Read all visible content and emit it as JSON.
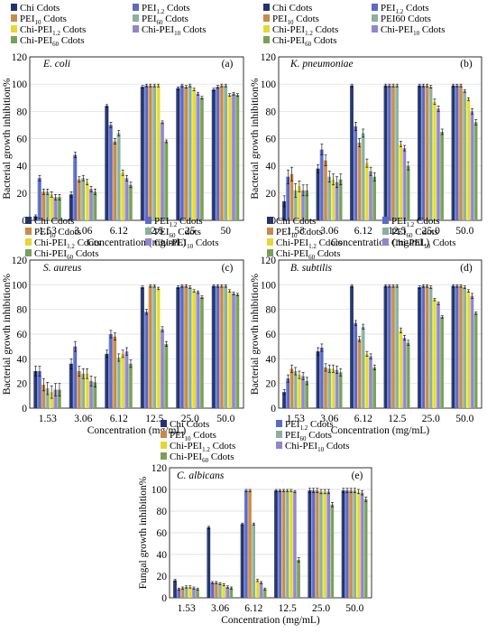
{
  "figure": {
    "colors": {
      "Chi Cdots": "#24336b",
      "PEI1.2 Cdots": "#5a6bc4",
      "PEI10 Cdots": "#c88a4a",
      "PEI60 Cdots": "#8ab0a0",
      "Chi-PEI1.2 Cdots": "#e6d832",
      "Chi-PEI10 Cdots": "#8f86d0",
      "Chi-PEI60 Cdots": "#78a05a"
    }
  },
  "chart_data": [
    {
      "type": "bar",
      "panel_label": "(a)",
      "organism": "E. coli",
      "ylabel": "Bacterial growth inhibition%",
      "xlabel": "Concentration (mg/mL)",
      "categories": [
        "1.53",
        "3.06",
        "6.12",
        "12.5",
        "25",
        "50"
      ],
      "ylim": [
        0,
        120
      ],
      "yticks": [
        "0",
        "20",
        "40",
        "60",
        "80",
        "100",
        "120"
      ],
      "legend": [
        {
          "sym": "Chi Cdots",
          "label": "Chi Cdots"
        },
        {
          "sym": "PEI1.2 Cdots",
          "label": "PEI",
          "sub": "1.2",
          "tail": " Cdots"
        },
        {
          "sym": "PEI10 Cdots",
          "label": "PEI",
          "sub": "10",
          "tail": " Cdots"
        },
        {
          "sym": "PEI60 Cdots",
          "label": "PEI",
          "sub": "60",
          "tail": " Cdots"
        },
        {
          "sym": "Chi-PEI1.2 Cdots",
          "label": "Chi-PEI",
          "sub": "1.2",
          "tail": " Cdots"
        },
        {
          "sym": "Chi-PEI10 Cdots",
          "label": "Chi-PEI",
          "sub": "10",
          "tail": " Cdots"
        },
        {
          "sym": "Chi-PEI60 Cdots",
          "label": "Chi-PEI",
          "sub": "60",
          "tail": " Cdots"
        }
      ],
      "series": [
        {
          "sym": "Chi Cdots",
          "values": [
            3,
            19,
            84,
            98,
            97,
            96
          ],
          "err": [
            1,
            2,
            1,
            1,
            1,
            1
          ]
        },
        {
          "sym": "PEI1.2 Cdots",
          "values": [
            31,
            48,
            70,
            99,
            99,
            98
          ],
          "err": [
            2,
            2,
            2,
            1,
            1,
            1
          ]
        },
        {
          "sym": "PEI10 Cdots",
          "values": [
            21,
            30,
            58,
            99,
            98,
            99
          ],
          "err": [
            2,
            2,
            2,
            1,
            1,
            1
          ]
        },
        {
          "sym": "PEI60 Cdots",
          "values": [
            21,
            31,
            64,
            99,
            99,
            99
          ],
          "err": [
            2,
            2,
            2,
            1,
            1,
            1
          ]
        },
        {
          "sym": "Chi-PEI1.2 Cdots",
          "values": [
            19,
            28,
            35,
            99,
            96,
            92
          ],
          "err": [
            2,
            2,
            2,
            1,
            1,
            1
          ]
        },
        {
          "sym": "Chi-PEI10 Cdots",
          "values": [
            17,
            23,
            31,
            72,
            93,
            93
          ],
          "err": [
            2,
            2,
            2,
            1,
            1,
            1
          ]
        },
        {
          "sym": "Chi-PEI60 Cdots",
          "values": [
            17,
            21,
            26,
            58,
            90,
            92
          ],
          "err": [
            2,
            2,
            2,
            1,
            1,
            1
          ]
        }
      ]
    },
    {
      "type": "bar",
      "panel_label": "(b)",
      "organism": "K. pneumoniae",
      "ylabel": "Bacterial growth inhibition%",
      "xlabel": "Concentration (mg/mL)",
      "categories": [
        "1.53",
        "3.06",
        "6.12",
        "12.5",
        "25.0",
        "50.0"
      ],
      "ylim": [
        0,
        120
      ],
      "yticks": [
        "0",
        "20",
        "40",
        "60",
        "80",
        "100",
        "120"
      ],
      "legend": [
        {
          "sym": "Chi Cdots",
          "label": "Chi Cdots"
        },
        {
          "sym": "PEI1.2 Cdots",
          "label": "PEI",
          "sub": "1.2",
          "tail": " Cdots"
        },
        {
          "sym": "PEI10 Cdots",
          "label": "PEI",
          "sub": "10",
          "tail": " Cdots"
        },
        {
          "sym": "PEI60 Cdots",
          "label": "PEI60 Cdots"
        },
        {
          "sym": "Chi-PEI1.2 Cdots",
          "label": "Chi-PEI",
          "sub": "1.2",
          "tail": " Cdots"
        },
        {
          "sym": "Chi-PEI10 Cdots",
          "label": "Chi-PEI",
          "sub": "10",
          "tail": " Cdots"
        },
        {
          "sym": "Chi-PEI60 Cdots",
          "label": "Chi-PEI",
          "sub": "60",
          "tail": " Cdots"
        }
      ],
      "series": [
        {
          "sym": "Chi Cdots",
          "values": [
            14,
            38,
            99,
            99,
            99,
            99
          ],
          "err": [
            4,
            3,
            1,
            1,
            1,
            1
          ]
        },
        {
          "sym": "PEI1.2 Cdots",
          "values": [
            32,
            52,
            69,
            99,
            99,
            99
          ],
          "err": [
            5,
            4,
            3,
            1,
            1,
            1
          ]
        },
        {
          "sym": "PEI10 Cdots",
          "values": [
            34,
            44,
            57,
            99,
            99,
            99
          ],
          "err": [
            5,
            4,
            3,
            1,
            1,
            1
          ]
        },
        {
          "sym": "PEI60 Cdots",
          "values": [
            22,
            32,
            64,
            99,
            98,
            95
          ],
          "err": [
            5,
            4,
            3,
            1,
            1,
            1
          ]
        },
        {
          "sym": "Chi-PEI1.2 Cdots",
          "values": [
            25,
            30,
            42,
            56,
            87,
            89
          ],
          "err": [
            4,
            4,
            3,
            2,
            2,
            1
          ]
        },
        {
          "sym": "Chi-PEI10 Cdots",
          "values": [
            22,
            28,
            36,
            53,
            82,
            80
          ],
          "err": [
            4,
            4,
            3,
            2,
            2,
            2
          ]
        },
        {
          "sym": "Chi-PEI60 Cdots",
          "values": [
            22,
            30,
            32,
            40,
            65,
            72
          ],
          "err": [
            4,
            4,
            3,
            3,
            2,
            2
          ]
        }
      ]
    },
    {
      "type": "bar",
      "panel_label": "(c)",
      "organism": "S. aureus",
      "ylabel": "Bacterial growth inhibition%",
      "xlabel": "Concentration (mg/mL)",
      "categories": [
        "1.53",
        "3.06",
        "6.12",
        "12.5",
        "25.0",
        "50.0"
      ],
      "ylim": [
        0,
        120
      ],
      "yticks": [
        "0",
        "20",
        "40",
        "60",
        "80",
        "100",
        "120"
      ],
      "legend": [
        {
          "sym": "Chi Cdots",
          "label": "Chi Cdots"
        },
        {
          "sym": "PEI1.2 Cdots",
          "label": "PEI",
          "sub": "1.2",
          "tail": " Cdots"
        },
        {
          "sym": "PEI10 Cdots",
          "label": "PEI",
          "sub": "10",
          "tail": " Cdots"
        },
        {
          "sym": "PEI60 Cdots",
          "label": "PEI",
          "sub": "60",
          "tail": " Cdots"
        },
        {
          "sym": "Chi-PEI1.2 Cdots",
          "label": "Chi-PEI",
          "sub": "1.2",
          "tail": " Cdots"
        },
        {
          "sym": "Chi-PEI10 Cdots",
          "label": "Chi-PEI",
          "sub": "10",
          "tail": " Cdots"
        },
        {
          "sym": "Chi-PEI60 Cdots",
          "label": "Chi-PEI",
          "sub": "60",
          "tail": " Cdots"
        }
      ],
      "series": [
        {
          "sym": "Chi Cdots",
          "values": [
            30,
            36,
            44,
            98,
            98,
            99
          ],
          "err": [
            4,
            4,
            3,
            1,
            1,
            1
          ]
        },
        {
          "sym": "PEI1.2 Cdots",
          "values": [
            30,
            50,
            60,
            78,
            99,
            99
          ],
          "err": [
            4,
            4,
            3,
            2,
            1,
            1
          ]
        },
        {
          "sym": "PEI10 Cdots",
          "values": [
            19,
            30,
            58,
            99,
            99,
            99
          ],
          "err": [
            5,
            4,
            3,
            1,
            1,
            1
          ]
        },
        {
          "sym": "PEI60 Cdots",
          "values": [
            16,
            28,
            41,
            99,
            98,
            99
          ],
          "err": [
            5,
            4,
            3,
            1,
            1,
            1
          ]
        },
        {
          "sym": "Chi-PEI1.2 Cdots",
          "values": [
            13,
            28,
            44,
            97,
            95,
            95
          ],
          "err": [
            5,
            4,
            3,
            1,
            1,
            1
          ]
        },
        {
          "sym": "Chi-PEI10 Cdots",
          "values": [
            15,
            22,
            46,
            64,
            94,
            93
          ],
          "err": [
            5,
            4,
            3,
            2,
            1,
            1
          ]
        },
        {
          "sym": "Chi-PEI60 Cdots",
          "values": [
            15,
            21,
            36,
            52,
            90,
            92
          ],
          "err": [
            5,
            4,
            3,
            2,
            1,
            1
          ]
        }
      ]
    },
    {
      "type": "bar",
      "panel_label": "(d)",
      "organism": "B. subtilis",
      "ylabel": "Bacterial growth inhibition%",
      "xlabel": "Concentration (mg/mL)",
      "categories": [
        "1.53",
        "3.06",
        "6.12",
        "12.5",
        "25.0",
        "50.0"
      ],
      "ylim": [
        0,
        120
      ],
      "yticks": [
        "0",
        "20",
        "40",
        "60",
        "80",
        "100",
        "120"
      ],
      "legend": [
        {
          "sym": "Chi Cdots",
          "label": "Chi Cdots"
        },
        {
          "sym": "PEI1.2 Cdots",
          "label": "PEI",
          "sub": "1.2",
          "tail": " Cdots"
        },
        {
          "sym": "PEI10 Cdots",
          "label": "PEI",
          "sub": "10",
          "tail": " Cdots"
        },
        {
          "sym": "PEI60 Cdots",
          "label": "PEI",
          "sub": "60",
          "tail": " Cdots"
        },
        {
          "sym": "Chi-PEI1.2 Cdots",
          "label": "Chi-PEI",
          "sub": "1.2",
          "tail": " Cdots"
        },
        {
          "sym": "Chi-PEI10 Cdots",
          "label": "Chi-PEI",
          "sub": "10",
          "tail": " Cdots"
        },
        {
          "sym": "Chi-PEI60 Cdots",
          "label": "Chi-PEI",
          "sub": "60",
          "tail": " Cdots"
        }
      ],
      "series": [
        {
          "sym": "Chi Cdots",
          "values": [
            13,
            46,
            99,
            99,
            98,
            99
          ],
          "err": [
            2,
            3,
            1,
            1,
            1,
            1
          ]
        },
        {
          "sym": "PEI1.2 Cdots",
          "values": [
            24,
            49,
            69,
            99,
            99,
            99
          ],
          "err": [
            3,
            3,
            2,
            1,
            1,
            1
          ]
        },
        {
          "sym": "PEI10 Cdots",
          "values": [
            32,
            33,
            56,
            99,
            99,
            99
          ],
          "err": [
            3,
            3,
            2,
            1,
            1,
            1
          ]
        },
        {
          "sym": "PEI60 Cdots",
          "values": [
            30,
            32,
            66,
            99,
            98,
            98
          ],
          "err": [
            3,
            3,
            2,
            1,
            1,
            1
          ]
        },
        {
          "sym": "Chi-PEI1.2 Cdots",
          "values": [
            27,
            32,
            44,
            63,
            88,
            95
          ],
          "err": [
            3,
            3,
            2,
            2,
            1,
            1
          ]
        },
        {
          "sym": "Chi-PEI10 Cdots",
          "values": [
            26,
            31,
            42,
            57,
            85,
            91
          ],
          "err": [
            3,
            3,
            2,
            2,
            1,
            2
          ]
        },
        {
          "sym": "Chi-PEI60 Cdots",
          "values": [
            22,
            29,
            33,
            53,
            74,
            77
          ],
          "err": [
            3,
            3,
            2,
            2,
            1,
            1
          ]
        }
      ]
    },
    {
      "type": "bar",
      "panel_label": "(e)",
      "organism": "C. albicans",
      "ylabel": "Fungal growth inhibition%",
      "xlabel": "Concentration (mg/mL)",
      "categories": [
        "1.53",
        "3.06",
        "6.12",
        "12.5",
        "25.0",
        "50.0"
      ],
      "ylim": [
        0,
        120
      ],
      "yticks": [
        "0",
        "20",
        "40",
        "60",
        "80",
        "100",
        "120"
      ],
      "legend": [
        {
          "sym": "Chi Cdots",
          "label": "Chi Cdots"
        },
        {
          "sym": "PEI1.2 Cdots",
          "label": "PEI",
          "sub": "1.2",
          "tail": " Cdots"
        },
        {
          "sym": "PEI10 Cdots",
          "label": "PEI",
          "sub": "10",
          "tail": " Cdots"
        },
        {
          "sym": "PEI60 Cdots",
          "label": "PEI",
          "sub": "60",
          "tail": " Cdots"
        },
        {
          "sym": "Chi-PEI1.2 Cdots",
          "label": "Chi-PEI",
          "sub": "1.2",
          "tail": " Cdots"
        },
        {
          "sym": "Chi-PEI10 Cdots",
          "label": "Chi-PEI",
          "sub": "10",
          "tail": " Cdots"
        },
        {
          "sym": "Chi-PEI60 Cdots",
          "label": "Chi-PEI",
          "sub": "60",
          "tail": " Cdots"
        }
      ],
      "series": [
        {
          "sym": "Chi Cdots",
          "values": [
            16,
            65,
            68,
            99,
            99,
            99
          ],
          "err": [
            1,
            1,
            1,
            1,
            2,
            2
          ]
        },
        {
          "sym": "PEI1.2 Cdots",
          "values": [
            8,
            14,
            99,
            99,
            99,
            99
          ],
          "err": [
            1,
            1,
            1,
            1,
            2,
            2
          ]
        },
        {
          "sym": "PEI10 Cdots",
          "values": [
            9,
            14,
            99,
            99,
            99,
            99
          ],
          "err": [
            1,
            1,
            1,
            1,
            2,
            2
          ]
        },
        {
          "sym": "PEI60 Cdots",
          "values": [
            10,
            13,
            68,
            99,
            98,
            99
          ],
          "err": [
            1,
            1,
            1,
            1,
            2,
            2
          ]
        },
        {
          "sym": "Chi-PEI1.2 Cdots",
          "values": [
            10,
            12,
            16,
            99,
            98,
            98
          ],
          "err": [
            1,
            1,
            1,
            1,
            2,
            2
          ]
        },
        {
          "sym": "Chi-PEI10 Cdots",
          "values": [
            9,
            10,
            14,
            98,
            98,
            97
          ],
          "err": [
            1,
            1,
            1,
            1,
            2,
            2
          ]
        },
        {
          "sym": "Chi-PEI60 Cdots",
          "values": [
            8,
            9,
            8,
            35,
            86,
            91
          ],
          "err": [
            1,
            1,
            1,
            2,
            2,
            2
          ]
        }
      ]
    }
  ]
}
